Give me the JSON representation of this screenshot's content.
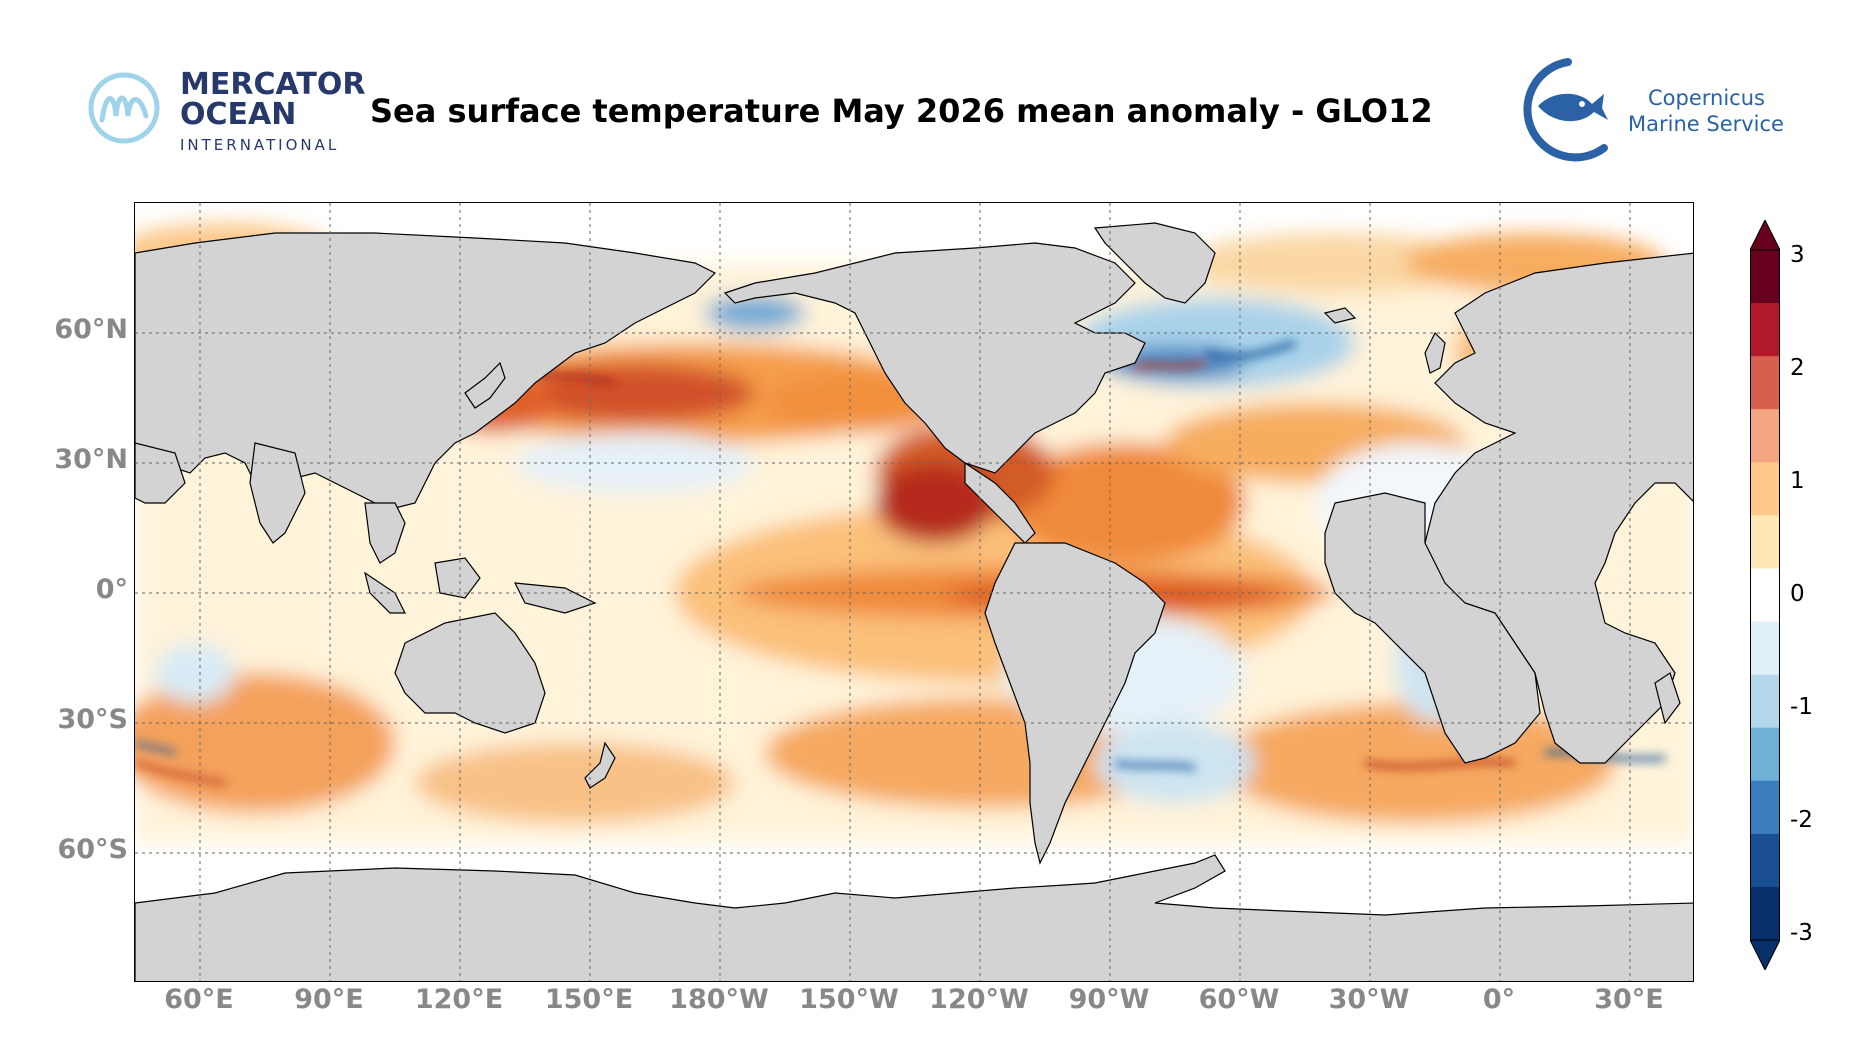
{
  "header": {
    "title": "Sea surface temperature May 2026 mean anomaly - GLO12",
    "left_logo": {
      "line1": "MERCATOR",
      "line2": "OCEAN",
      "line3": "INTERNATIONAL",
      "color": "#27386b",
      "accent": "#9fd3ea"
    },
    "right_logo": {
      "line1": "Copernicus",
      "line2": "Marine Service",
      "color": "#2a62a5"
    }
  },
  "map": {
    "projection": "plate carree, central meridian 150°W",
    "land_color": "#d3d3d3",
    "gridlines": "dashed gray",
    "lat_labels": [
      "60°N",
      "30°N",
      "0°",
      "30°S",
      "60°S"
    ],
    "lon_labels": [
      "60°E",
      "90°E",
      "120°E",
      "150°E",
      "180°W",
      "150°W",
      "120°W",
      "90°W",
      "60°W",
      "30°W",
      "0°",
      "30°E"
    ],
    "features": [
      "Strong warm anomaly along equatorial Pacific (El Niño-like)",
      "Warm North Pacific band near 40°N",
      "Cold anomalies in Gulf Stream and Brazil–Malvinas confluence",
      "Cold anomaly in Gulf of Alaska coastal area"
    ]
  },
  "colorbar": {
    "min": -3,
    "max": 3,
    "ticks": [
      "3",
      "2",
      "1",
      "0",
      "-1",
      "-2",
      "-3"
    ],
    "colors_top_to_bottom": [
      "#67001f",
      "#b2182b",
      "#d6604d",
      "#f4a582",
      "#fdc98a",
      "#fee8b5",
      "#ffffff",
      "#e0f0f8",
      "#b4d7ea",
      "#6fb0d6",
      "#3a7ebe",
      "#1b4f93",
      "#08306b"
    ]
  }
}
